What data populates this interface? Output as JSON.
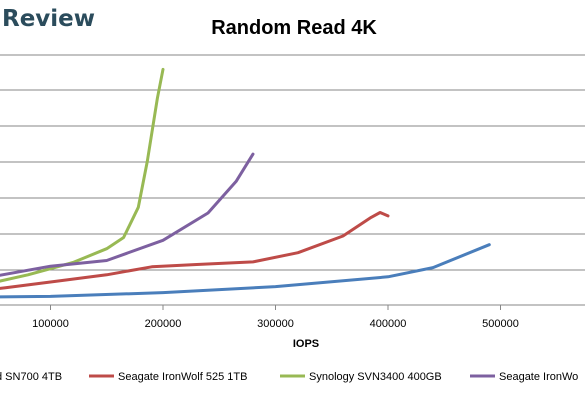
{
  "header": {
    "brand": "Review"
  },
  "chart_data": {
    "type": "line",
    "title": "Random Read 4K",
    "xlabel": "IOPS",
    "ylabel": "",
    "xlim": [
      0,
      520000
    ],
    "x_ticks": [
      100000,
      200000,
      300000,
      400000,
      500000
    ],
    "x_tick_labels": [
      "100000",
      "200000",
      "300000",
      "400000",
      "500000"
    ],
    "grid": "horizontal",
    "legend_position": "bottom",
    "series": [
      {
        "name": "d SN700 4TB",
        "color": "#4a7ebb",
        "points": [
          [
            0,
            2.6
          ],
          [
            100000,
            3.0
          ],
          [
            200000,
            4.3
          ],
          [
            300000,
            6.4
          ],
          [
            400000,
            9.8
          ],
          [
            440000,
            13.0
          ],
          [
            490000,
            21.0
          ]
        ]
      },
      {
        "name": "Seagate IronWolf 525 1TB",
        "color": "#be4b48",
        "points": [
          [
            0,
            3.4
          ],
          [
            60000,
            6.0
          ],
          [
            100000,
            8.0
          ],
          [
            150000,
            10.5
          ],
          [
            190000,
            13.3
          ],
          [
            230000,
            14.1
          ],
          [
            280000,
            15.0
          ],
          [
            320000,
            18.2
          ],
          [
            360000,
            24.0
          ],
          [
            385000,
            30.5
          ],
          [
            393000,
            32.2
          ],
          [
            400000,
            31.0
          ]
        ]
      },
      {
        "name": "Synology SVN3400 400GB",
        "color": "#98b954",
        "points": [
          [
            0,
            4.0
          ],
          [
            40000,
            7.0
          ],
          [
            80000,
            10.5
          ],
          [
            120000,
            14.8
          ],
          [
            150000,
            19.6
          ],
          [
            165000,
            23.5
          ],
          [
            178000,
            34.0
          ],
          [
            186000,
            50.0
          ],
          [
            195000,
            72.0
          ],
          [
            200000,
            82.0
          ]
        ]
      },
      {
        "name": "Seagate IronWo",
        "color": "#7d60a0",
        "points": [
          [
            0,
            6.2
          ],
          [
            50000,
            10.0
          ],
          [
            100000,
            13.5
          ],
          [
            150000,
            15.5
          ],
          [
            200000,
            22.5
          ],
          [
            240000,
            32.0
          ],
          [
            265000,
            43.0
          ],
          [
            280000,
            52.5
          ]
        ]
      }
    ]
  }
}
